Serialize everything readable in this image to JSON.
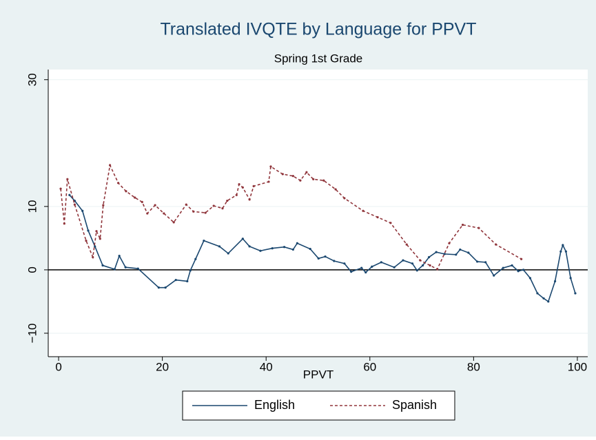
{
  "chart_data": {
    "type": "line",
    "title": "Translated IVQTE by Language for PPVT",
    "subtitle": "Spring 1st Grade",
    "x_label": "PPVT",
    "xlim": [
      -2,
      102
    ],
    "ylim": [
      -13.7,
      31.6
    ],
    "xticks": [
      0,
      20,
      40,
      60,
      80,
      100
    ],
    "yticks": [
      {
        "value": -10,
        "label": "−10"
      },
      0,
      10,
      30
    ],
    "grid": true,
    "hline": 0,
    "legend": "bottom",
    "series": [
      {
        "name": "English",
        "color": "#1a476f",
        "line_style": "solid",
        "x": [
          2.1,
          3.1,
          4.6,
          5.7,
          7.0,
          8.5,
          10.8,
          11.7,
          12.9,
          15.3,
          19.3,
          20.6,
          22.6,
          24.8,
          25.4,
          26.4,
          28,
          31,
          32.7,
          35.5,
          36.8,
          38.9,
          41.2,
          43.5,
          45.2,
          46,
          48.5,
          50.1,
          51.4,
          53.1,
          55.1,
          56.4,
          58.4,
          59.2,
          60.4,
          62.2,
          64.7,
          66.4,
          68.2,
          69.1,
          70.2,
          71.4,
          72.8,
          74.4,
          76.6,
          77.4,
          79,
          80.7,
          82.3,
          83.9,
          85.7,
          87.4,
          88.6,
          89.6,
          90.9,
          92.3,
          93.5,
          94.4,
          95.7,
          96.8,
          97.2,
          97.8,
          98.7,
          99.6
        ],
        "values": [
          11.8,
          10.9,
          9.3,
          6.2,
          3.7,
          0.7,
          0.1,
          2.2,
          0.4,
          0.2,
          -2.8,
          -2.8,
          -1.6,
          -1.8,
          -0.1,
          1.7,
          4.6,
          3.7,
          2.6,
          4.9,
          3.7,
          3.0,
          3.4,
          3.6,
          3.2,
          4.2,
          3.3,
          1.8,
          2.1,
          1.4,
          1.0,
          -0.3,
          0.3,
          -0.4,
          0.5,
          1.2,
          0.4,
          1.5,
          1.0,
          -0.1,
          0.7,
          2.0,
          2.8,
          2.5,
          2.4,
          3.2,
          2.7,
          1.3,
          1.2,
          -0.9,
          0.3,
          0.7,
          -0.2,
          0,
          -1.3,
          -3.7,
          -4.5,
          -5.0,
          -1.8,
          2.9,
          3.9,
          2.9,
          -1.3,
          -3.7
        ]
      },
      {
        "name": "Spanish",
        "color": "#90353b",
        "line_style": "dashed",
        "x": [
          0.4,
          1.1,
          1.7,
          3.1,
          5.3,
          6.6,
          7.3,
          8.0,
          8.6,
          9.9,
          11.5,
          13.0,
          14.7,
          16.1,
          17.1,
          18.6,
          20.3,
          22.2,
          24.6,
          26.0,
          28.3,
          29.9,
          31.6,
          32.5,
          34.3,
          34.8,
          35.5,
          36.8,
          37.6,
          40.5,
          40.9,
          43.2,
          45.2,
          46.6,
          47.8,
          49.1,
          51.1,
          53.4,
          55.1,
          58.7,
          61.5,
          64.0,
          67.1,
          69.7,
          71.6,
          73.0,
          75.3,
          77.9,
          81.0,
          84.3,
          89.2
        ],
        "values": [
          12.8,
          7.3,
          14.3,
          10.3,
          4.6,
          2.0,
          6.1,
          4.9,
          10.2,
          16.5,
          13.7,
          12.4,
          11.4,
          10.7,
          8.9,
          10.2,
          8.9,
          7.5,
          10.3,
          9.2,
          9.0,
          10.1,
          9.7,
          10.9,
          11.8,
          13.5,
          13.0,
          11.1,
          13.2,
          13.9,
          16.3,
          15.1,
          14.8,
          14.1,
          15.4,
          14.3,
          14.1,
          12.7,
          11.3,
          9.3,
          8.3,
          7.4,
          4.0,
          1.5,
          0.7,
          0.1,
          4.2,
          7.1,
          6.6,
          4.0,
          1.7
        ]
      }
    ]
  }
}
